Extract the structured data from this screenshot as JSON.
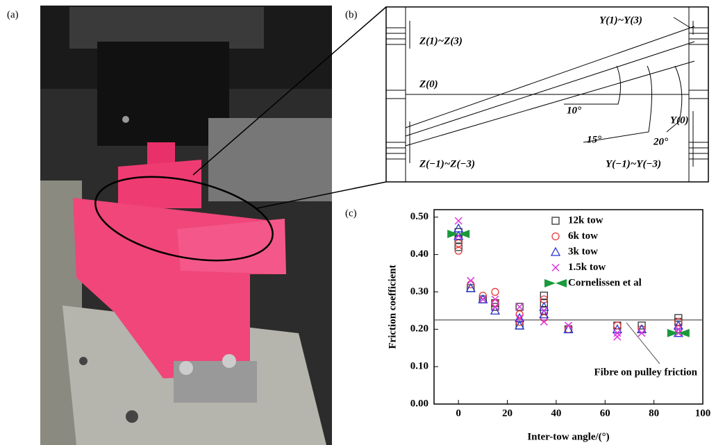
{
  "panels": [
    "(a)",
    "(b)",
    "(c)"
  ],
  "diagram": {
    "labels": [
      "Y(1)~Y(3)",
      "Z(1)~Z(3)",
      "Z(0)",
      "10°",
      "15°",
      "20°",
      "Y(0)",
      "Z(−1)~Z(−3)",
      "Y(−1)~Y(−3)"
    ]
  },
  "chart_data": {
    "type": "scatter",
    "xlabel": "Inter-tow angle/(°)",
    "ylabel": "Friction coefficient",
    "xlim": [
      -10,
      100
    ],
    "xticks": [
      0,
      20,
      40,
      60,
      80,
      100
    ],
    "ylim": [
      0,
      0.52
    ],
    "yticks": [
      {
        "value": 0,
        "label": "0.00"
      },
      {
        "value": 0.1,
        "label": "0.10"
      },
      {
        "value": 0.2,
        "label": "0.20"
      },
      {
        "value": 0.3,
        "label": "0.30"
      },
      {
        "value": 0.4,
        "label": "0.40"
      },
      {
        "value": 0.5,
        "label": "0.50"
      }
    ],
    "reference_line": {
      "value": 0.225,
      "label": "Fibre on pulley friction"
    },
    "series": [
      {
        "name": "12k tow",
        "color": "#333333",
        "marker": "square",
        "x": [
          0,
          0,
          0,
          5,
          10,
          15,
          15,
          25,
          25,
          35,
          35,
          35,
          45,
          65,
          75,
          90,
          90
        ],
        "values": [
          0.42,
          0.44,
          0.46,
          0.31,
          0.28,
          0.26,
          0.27,
          0.21,
          0.26,
          0.25,
          0.27,
          0.29,
          0.2,
          0.21,
          0.21,
          0.22,
          0.23
        ]
      },
      {
        "name": "6k tow",
        "color": "#e8393c",
        "marker": "circle",
        "x": [
          0,
          0,
          5,
          10,
          15,
          15,
          25,
          25,
          35,
          35,
          45,
          65,
          75,
          90,
          90
        ],
        "values": [
          0.41,
          0.43,
          0.32,
          0.29,
          0.3,
          0.27,
          0.24,
          0.22,
          0.28,
          0.23,
          0.2,
          0.21,
          0.2,
          0.2,
          0.22
        ]
      },
      {
        "name": "3k tow",
        "color": "#2233cc",
        "marker": "triangle",
        "x": [
          0,
          0,
          5,
          10,
          15,
          25,
          25,
          35,
          35,
          45,
          65,
          75,
          90,
          90
        ],
        "values": [
          0.45,
          0.47,
          0.31,
          0.28,
          0.25,
          0.21,
          0.23,
          0.24,
          0.26,
          0.2,
          0.2,
          0.2,
          0.19,
          0.21
        ]
      },
      {
        "name": "1.5k tow",
        "color": "#dd33dd",
        "marker": "x",
        "x": [
          0,
          0,
          5,
          10,
          15,
          15,
          25,
          25,
          35,
          35,
          45,
          65,
          65,
          75,
          90,
          90
        ],
        "values": [
          0.49,
          0.45,
          0.33,
          0.28,
          0.28,
          0.26,
          0.26,
          0.23,
          0.22,
          0.25,
          0.21,
          0.18,
          0.19,
          0.19,
          0.19,
          0.2
        ]
      },
      {
        "name": "Cornelissen et al",
        "color": "#1a9a3a",
        "marker": "bowtie",
        "x": [
          0,
          90
        ],
        "values": [
          0.455,
          0.19
        ]
      }
    ]
  }
}
